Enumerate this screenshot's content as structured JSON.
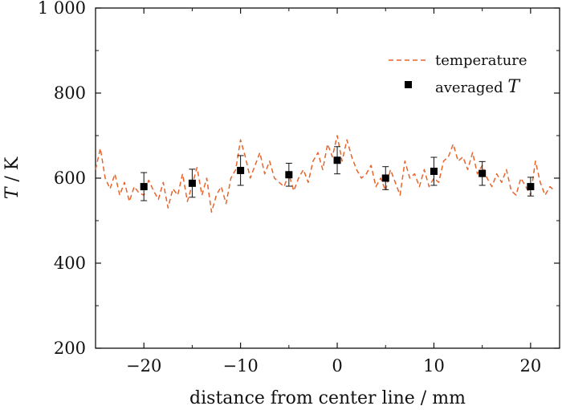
{
  "chart_data": {
    "type": "line",
    "xlabel": "distance from center line / mm",
    "ylabel_italic": "T",
    "ylabel_rest": " / K",
    "xlim": [
      -25,
      23
    ],
    "ylim": [
      200,
      1000
    ],
    "x_ticks": [
      -20,
      -10,
      0,
      10,
      20
    ],
    "x_tick_labels": [
      "−20",
      "−10",
      "0",
      "10",
      "20"
    ],
    "y_ticks": [
      200,
      400,
      600,
      800,
      1000
    ],
    "y_tick_labels": [
      "200",
      "400",
      "600",
      "800",
      "1 000"
    ],
    "grid": false,
    "legend": {
      "position": "top-right",
      "entries": [
        {
          "label": "temperature",
          "style": "dashed-line"
        },
        {
          "label_prefix": "averaged ",
          "label_italic": "T",
          "style": "square-marker"
        }
      ]
    },
    "series": [
      {
        "name": "temperature",
        "color": "#e8642a",
        "style": "dashed",
        "x": [
          -25,
          -24.5,
          -24,
          -23.5,
          -23,
          -22.5,
          -22,
          -21.5,
          -21,
          -20.5,
          -20,
          -19.5,
          -19,
          -18.5,
          -18,
          -17.5,
          -17,
          -16.5,
          -16,
          -15.5,
          -15,
          -14.5,
          -14,
          -13.5,
          -13,
          -12.5,
          -12,
          -11.5,
          -11,
          -10.5,
          -10,
          -9.5,
          -9,
          -8.5,
          -8,
          -7.5,
          -7,
          -6.5,
          -6,
          -5.5,
          -5,
          -4.5,
          -4,
          -3.5,
          -3,
          -2.5,
          -2,
          -1.5,
          -1,
          -0.5,
          0,
          0.5,
          1,
          1.5,
          2,
          2.5,
          3,
          3.5,
          4,
          4.5,
          5,
          5.5,
          6,
          6.5,
          7,
          7.5,
          8,
          8.5,
          9,
          9.5,
          10,
          10.5,
          11,
          11.5,
          12,
          12.5,
          13,
          13.5,
          14,
          14.5,
          15,
          15.5,
          16,
          16.5,
          17,
          17.5,
          18,
          18.5,
          19,
          19.5,
          20,
          20.5,
          21,
          21.5,
          22,
          22.5
        ],
        "y": [
          620,
          670,
          600,
          575,
          610,
          560,
          590,
          545,
          580,
          565,
          560,
          595,
          570,
          550,
          590,
          530,
          575,
          560,
          610,
          545,
          585,
          625,
          560,
          600,
          520,
          560,
          580,
          540,
          600,
          620,
          690,
          650,
          600,
          630,
          660,
          610,
          640,
          600,
          590,
          580,
          610,
          570,
          600,
          620,
          590,
          640,
          660,
          620,
          680,
          650,
          700,
          640,
          690,
          650,
          620,
          600,
          610,
          630,
          580,
          600,
          570,
          620,
          590,
          560,
          640,
          600,
          610,
          580,
          620,
          580,
          600,
          590,
          640,
          650,
          680,
          640,
          650,
          620,
          660,
          610,
          630,
          600,
          580,
          610,
          590,
          620,
          570,
          560,
          600,
          580,
          560,
          640,
          590,
          560,
          580,
          570
        ]
      },
      {
        "name": "averaged T",
        "color": "#000000",
        "style": "square-marker",
        "x": [
          -20,
          -15,
          -10,
          -5,
          0,
          5,
          10,
          15,
          20
        ],
        "y": [
          580,
          588,
          618,
          608,
          642,
          600,
          616,
          611,
          580
        ],
        "err": [
          33,
          33,
          35,
          27,
          32,
          27,
          33,
          28,
          22
        ]
      }
    ]
  }
}
